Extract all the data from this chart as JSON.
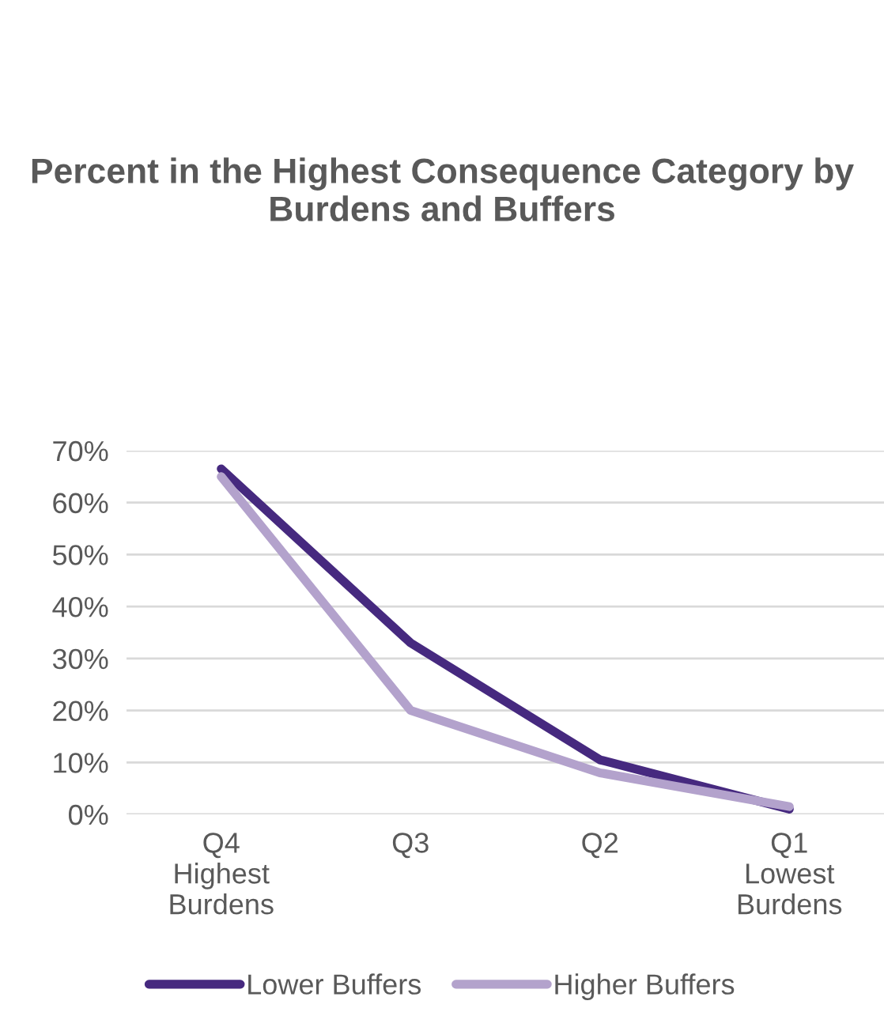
{
  "chart_data": {
    "type": "line",
    "title": "Percent in the Highest Consequence Category by Burdens and Buffers",
    "categories": [
      "Q4\nHighest\nBurdens",
      "Q3",
      "Q2",
      "Q1\nLowest\nBurdens"
    ],
    "series": [
      {
        "name": "Lower Buffers",
        "color": "#46297f",
        "values": [
          66.5,
          33,
          10.5,
          1
        ]
      },
      {
        "name": "Higher Buffers",
        "color": "#b3a2cc",
        "values": [
          65,
          20,
          8,
          1.5
        ]
      }
    ],
    "ylim": [
      0,
      70
    ],
    "yticks": [
      {
        "value": 0,
        "label": "0%"
      },
      {
        "value": 10,
        "label": "10%"
      },
      {
        "value": 20,
        "label": "20%"
      },
      {
        "value": 30,
        "label": "30%"
      },
      {
        "value": 40,
        "label": "40%"
      },
      {
        "value": 50,
        "label": "50%"
      },
      {
        "value": 60,
        "label": "60%"
      },
      {
        "value": 70,
        "label": "70%"
      }
    ],
    "grid": "y",
    "legend": "bottom",
    "marker": "none",
    "line_style": "solid"
  }
}
